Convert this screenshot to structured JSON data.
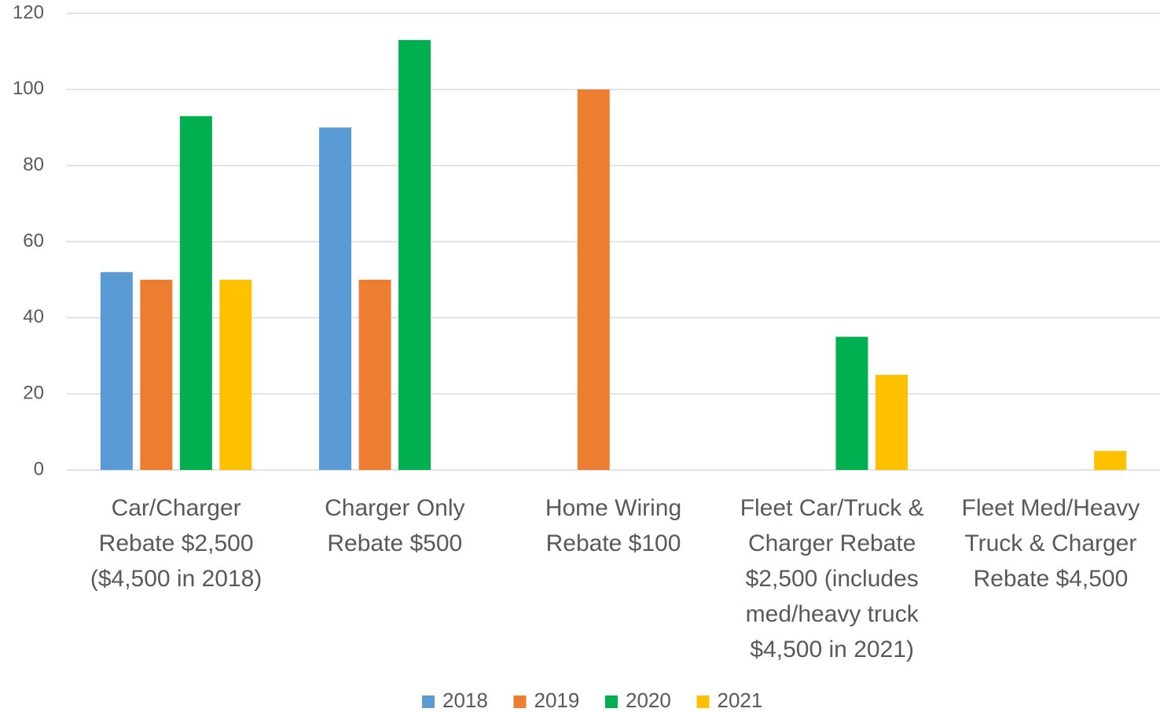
{
  "chart_data": {
    "type": "bar",
    "categories": [
      "Car/Charger\nRebate $2,500\n($4,500 in 2018)",
      "Charger Only\nRebate $500",
      "Home Wiring\nRebate $100",
      "Fleet Car/Truck &\nCharger Rebate\n$2,500 (includes\nmed/heavy truck\n$4,500 in 2021)",
      "Fleet Med/Heavy\nTruck & Charger\nRebate $4,500"
    ],
    "series": [
      {
        "name": "2018",
        "color": "#5b9bd5",
        "values": [
          52,
          90,
          null,
          null,
          null
        ]
      },
      {
        "name": "2019",
        "color": "#ed7d31",
        "values": [
          50,
          50,
          100,
          null,
          null
        ]
      },
      {
        "name": "2020",
        "color": "#00b050",
        "values": [
          93,
          113,
          null,
          35,
          null
        ]
      },
      {
        "name": "2021",
        "color": "#ffc000",
        "values": [
          50,
          null,
          null,
          25,
          5
        ]
      }
    ],
    "ylim": [
      0,
      120
    ],
    "yticks": [
      0,
      20,
      40,
      60,
      80,
      100,
      120
    ],
    "grid": true,
    "legend": "bottom"
  }
}
